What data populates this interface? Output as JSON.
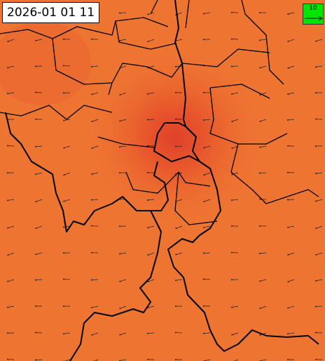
{
  "timestamp": "2026-01 01 11",
  "legend": {
    "label": "10"
  }
}
